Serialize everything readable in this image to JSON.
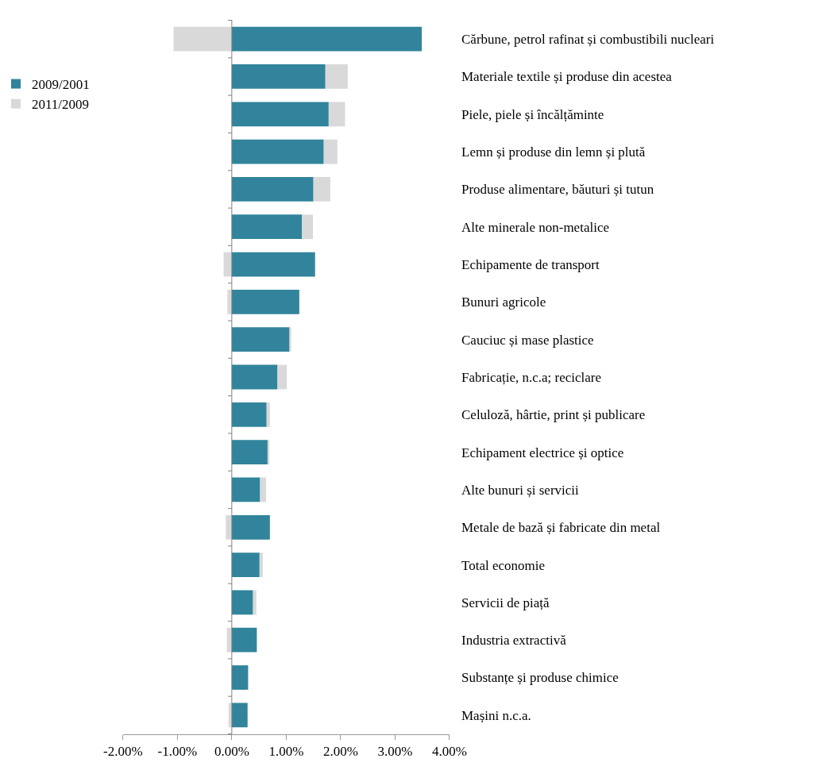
{
  "chart_data": {
    "type": "bar",
    "orientation": "horizontal",
    "stacked": true,
    "categories": [
      "Cărbune, petrol rafinat și combustibili nucleari",
      "Materiale textile și produse din acestea",
      "Piele, piele și încălțăminte",
      "Lemn și produse din lemn și plută",
      "Produse alimentare, băuturi și tutun",
      "Alte minerale non-metalice",
      "Echipamente de transport",
      "Bunuri agricole",
      "Cauciuc și mase plastice",
      "Fabricație, n.c.a; reciclare",
      "Celuloză, hârtie, print și publicare",
      "Echipament electrice și optice",
      "Alte bunuri și servicii",
      "Metale de bază și fabricate din metal",
      "Total economie",
      "Servicii de piață",
      "Industria extractivă",
      "Substanțe și produse chimice",
      "Mașini n.c.a."
    ],
    "series": [
      {
        "name": "2009/2001",
        "color": "#31849b",
        "values": [
          3.49,
          1.72,
          1.78,
          1.69,
          1.5,
          1.29,
          1.53,
          1.24,
          1.06,
          0.84,
          0.64,
          0.67,
          0.52,
          0.7,
          0.51,
          0.39,
          0.46,
          0.3,
          0.29
        ]
      },
      {
        "name": "2011/2009",
        "color": "#d9d9d9",
        "values": [
          -1.07,
          0.41,
          0.3,
          0.25,
          0.31,
          0.2,
          -0.15,
          -0.08,
          0.03,
          0.17,
          0.06,
          0.02,
          0.11,
          -0.11,
          0.06,
          0.06,
          -0.09,
          0,
          -0.06
        ]
      }
    ],
    "xlim": [
      -2,
      4
    ],
    "xticks": [
      {
        "value": -2,
        "label": "-2.00%"
      },
      {
        "value": -1,
        "label": "-1.00%"
      },
      {
        "value": 0,
        "label": "0.00%"
      },
      {
        "value": 1,
        "label": "1.00%"
      },
      {
        "value": 2,
        "label": "2.00%"
      },
      {
        "value": 3,
        "label": "3.00%"
      },
      {
        "value": 4,
        "label": "4.00%"
      }
    ],
    "legend": "top left"
  }
}
